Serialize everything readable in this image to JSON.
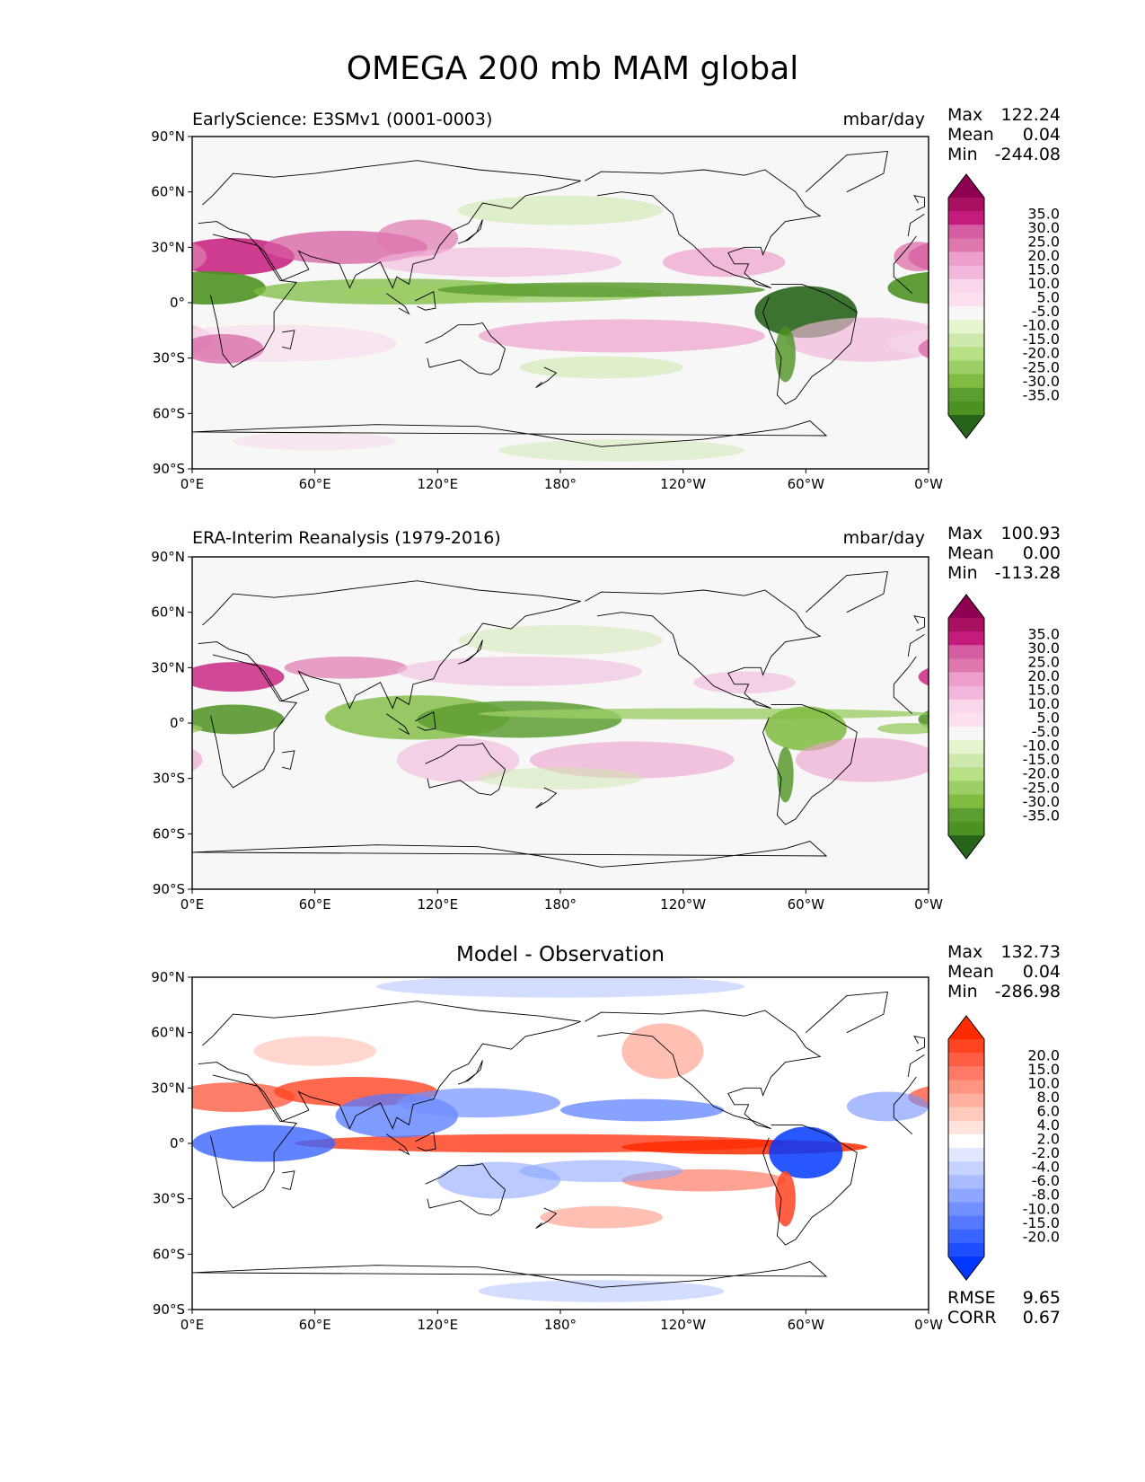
{
  "title": "OMEGA 200 mb MAM global",
  "panels": [
    {
      "left_title": "EarlyScience: E3SMv1 (0001-0003)",
      "units": "mbar/day",
      "stats": {
        "max_label": "Max",
        "max": "122.24",
        "mean_label": "Mean",
        "mean": "0.04",
        "min_label": "Min",
        "min": "-244.08"
      }
    },
    {
      "left_title": "ERA-Interim Reanalysis (1979-2016)",
      "units": "mbar/day",
      "stats": {
        "max_label": "Max",
        "max": "100.93",
        "mean_label": "Mean",
        "mean": "0.00",
        "min_label": "Min",
        "min": "-113.28"
      }
    },
    {
      "center_title": "Model - Observation",
      "stats": {
        "max_label": "Max",
        "max": "132.73",
        "mean_label": "Mean",
        "mean": "0.04",
        "min_label": "Min",
        "min": "-286.98"
      },
      "metrics": {
        "rmse_label": "RMSE",
        "rmse": "9.65",
        "corr_label": "CORR",
        "corr": "0.67"
      }
    }
  ],
  "chart_data": [
    {
      "type": "heatmap",
      "title": "EarlyScience: E3SMv1 (0001-0003)",
      "units": "mbar/day",
      "x_ticks": [
        "0°E",
        "60°E",
        "120°E",
        "180°",
        "120°W",
        "60°W",
        "0°W"
      ],
      "y_ticks": [
        "90°N",
        "60°N",
        "30°N",
        "0°",
        "30°S",
        "60°S",
        "90°S"
      ],
      "xlim": [
        0,
        360
      ],
      "ylim": [
        -90,
        90
      ],
      "colorbar_levels": [
        "35.0",
        "30.0",
        "25.0",
        "20.0",
        "15.0",
        "10.0",
        "5.0",
        "-5.0",
        "-10.0",
        "-15.0",
        "-20.0",
        "-25.0",
        "-30.0",
        "-35.0"
      ],
      "colorbar_colors": [
        "#8e0152",
        "#a7115f",
        "#c51b7d",
        "#d55ea2",
        "#de77ae",
        "#ec9fcb",
        "#f1b6da",
        "#f8d8ea",
        "#fde0ef",
        "#f7f7f7",
        "#e6f5d0",
        "#cfe8ad",
        "#b8e186",
        "#9ccd66",
        "#7fbc41",
        "#5d9e33",
        "#4d9221",
        "#276419"
      ]
    },
    {
      "type": "heatmap",
      "title": "ERA-Interim Reanalysis (1979-2016)",
      "units": "mbar/day",
      "x_ticks": [
        "0°E",
        "60°E",
        "120°E",
        "180°",
        "120°W",
        "60°W",
        "0°W"
      ],
      "y_ticks": [
        "90°N",
        "60°N",
        "30°N",
        "0°",
        "30°S",
        "60°S",
        "90°S"
      ],
      "xlim": [
        0,
        360
      ],
      "ylim": [
        -90,
        90
      ],
      "colorbar_levels": [
        "35.0",
        "30.0",
        "25.0",
        "20.0",
        "15.0",
        "10.0",
        "5.0",
        "-5.0",
        "-10.0",
        "-15.0",
        "-20.0",
        "-25.0",
        "-30.0",
        "-35.0"
      ],
      "colorbar_colors": [
        "#8e0152",
        "#a7115f",
        "#c51b7d",
        "#d55ea2",
        "#de77ae",
        "#ec9fcb",
        "#f1b6da",
        "#f8d8ea",
        "#fde0ef",
        "#f7f7f7",
        "#e6f5d0",
        "#cfe8ad",
        "#b8e186",
        "#9ccd66",
        "#7fbc41",
        "#5d9e33",
        "#4d9221",
        "#276419"
      ]
    },
    {
      "type": "heatmap",
      "title": "Model - Observation",
      "x_ticks": [
        "0°E",
        "60°E",
        "120°E",
        "180°",
        "120°W",
        "60°W",
        "0°W"
      ],
      "y_ticks": [
        "90°N",
        "60°N",
        "30°N",
        "0°",
        "30°S",
        "60°S",
        "90°S"
      ],
      "xlim": [
        0,
        360
      ],
      "ylim": [
        -90,
        90
      ],
      "colorbar_levels": [
        "20.0",
        "15.0",
        "10.0",
        "8.0",
        "6.0",
        "4.0",
        "2.0",
        "-2.0",
        "-4.0",
        "-6.0",
        "-8.0",
        "-10.0",
        "-15.0",
        "-20.0"
      ],
      "colorbar_colors": [
        "#ff2a00",
        "#ff4422",
        "#ff5e44",
        "#ff7a66",
        "#ff9580",
        "#ffb09f",
        "#ffcabe",
        "#ffe4de",
        "#ffffff",
        "#e2e8ff",
        "#c6d2ff",
        "#aabcff",
        "#8ea6ff",
        "#7290ff",
        "#567aff",
        "#3a64ff",
        "#1e4eff",
        "#0238ff"
      ]
    }
  ]
}
